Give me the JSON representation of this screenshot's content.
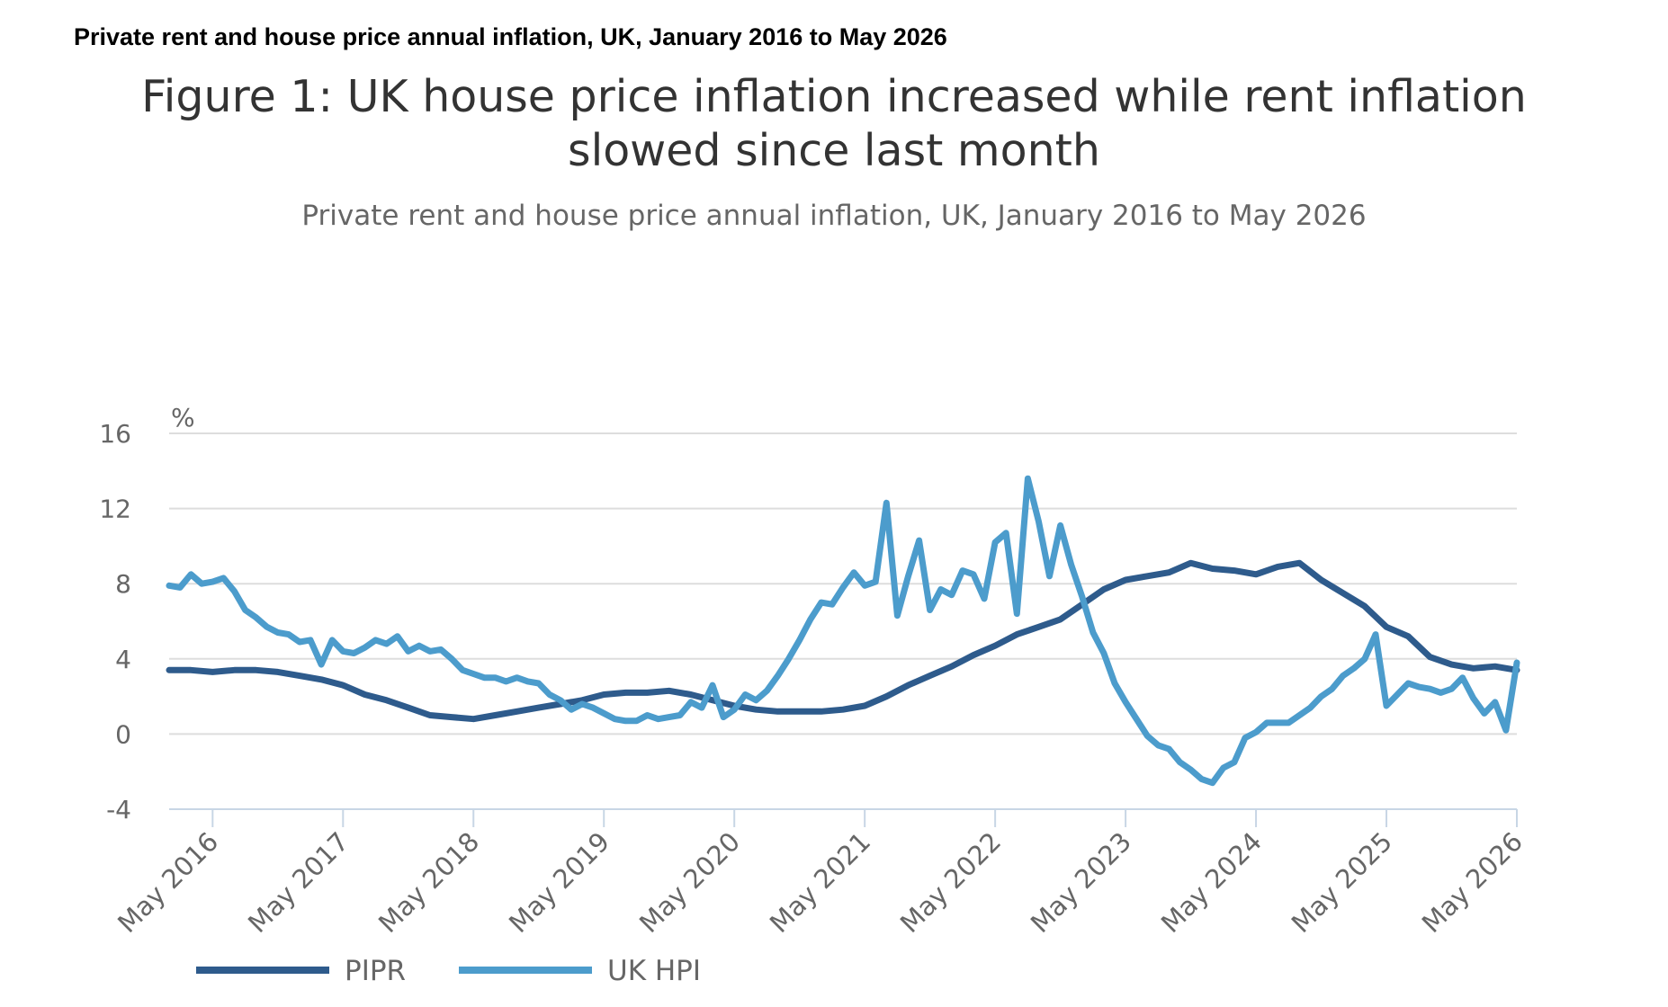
{
  "page_heading": "Private rent and house price annual inflation, UK, January 2016 to May 2026",
  "chart_data": {
    "type": "line",
    "title_lines": [
      "Figure 1: UK house price inflation increased while rent inflation",
      "slowed since last month"
    ],
    "subtitle": "Private rent and house price annual inflation, UK, January 2016 to May 2026",
    "ylabel": "%",
    "ylim": [
      -4,
      16
    ],
    "yticks": [
      "16",
      "12",
      "8",
      "4",
      "0",
      "-4"
    ],
    "xlim": [
      "2016-01",
      "2026-05"
    ],
    "xticks": [
      "May 2016",
      "May 2017",
      "May 2018",
      "May 2019",
      "May 2020",
      "May 2021",
      "May 2022",
      "May 2023",
      "May 2024",
      "May 2025",
      "May 2026"
    ],
    "grid": "horizontal",
    "legend_position": "bottom-left",
    "colors": {
      "PIPR": "#2e5b8c",
      "UK HPI": "#4c9ccc",
      "grid": "#dddddd",
      "axis": "#c8d6e5"
    },
    "series": [
      {
        "name": "PIPR",
        "x": [
          "2016-01",
          "2016-03",
          "2016-05",
          "2016-07",
          "2016-09",
          "2016-11",
          "2017-01",
          "2017-03",
          "2017-05",
          "2017-07",
          "2017-09",
          "2017-11",
          "2018-01",
          "2018-03",
          "2018-05",
          "2018-07",
          "2018-09",
          "2018-11",
          "2019-01",
          "2019-03",
          "2019-05",
          "2019-07",
          "2019-09",
          "2019-11",
          "2020-01",
          "2020-03",
          "2020-05",
          "2020-07",
          "2020-09",
          "2020-11",
          "2021-01",
          "2021-03",
          "2021-05",
          "2021-07",
          "2021-09",
          "2021-11",
          "2022-01",
          "2022-03",
          "2022-05",
          "2022-07",
          "2022-09",
          "2022-11",
          "2023-01",
          "2023-03",
          "2023-05",
          "2023-07",
          "2023-09",
          "2023-11",
          "2024-01",
          "2024-03",
          "2024-05",
          "2024-07",
          "2024-09",
          "2024-11",
          "2025-01",
          "2025-03",
          "2025-05",
          "2025-07",
          "2025-09",
          "2025-11",
          "2026-01",
          "2026-03",
          "2026-05"
        ],
        "values": [
          3.4,
          3.4,
          3.3,
          3.4,
          3.4,
          3.3,
          3.1,
          2.9,
          2.6,
          2.1,
          1.8,
          1.4,
          1.0,
          0.9,
          0.8,
          1.0,
          1.2,
          1.4,
          1.6,
          1.8,
          2.1,
          2.2,
          2.2,
          2.3,
          2.1,
          1.8,
          1.5,
          1.3,
          1.2,
          1.2,
          1.2,
          1.3,
          1.5,
          2.0,
          2.6,
          3.1,
          3.6,
          4.2,
          4.7,
          5.3,
          5.7,
          6.1,
          6.9,
          7.7,
          8.2,
          8.4,
          8.6,
          9.1,
          8.8,
          8.7,
          8.5,
          8.9,
          9.1,
          8.2,
          7.5,
          6.8,
          5.7,
          5.2,
          4.1,
          3.7,
          3.5,
          3.6,
          3.4
        ]
      },
      {
        "name": "UK HPI",
        "x": [
          "2016-01",
          "2016-02",
          "2016-03",
          "2016-04",
          "2016-05",
          "2016-06",
          "2016-07",
          "2016-08",
          "2016-09",
          "2016-10",
          "2016-11",
          "2016-12",
          "2017-01",
          "2017-02",
          "2017-03",
          "2017-04",
          "2017-05",
          "2017-06",
          "2017-07",
          "2017-08",
          "2017-09",
          "2017-10",
          "2017-11",
          "2017-12",
          "2018-01",
          "2018-02",
          "2018-03",
          "2018-04",
          "2018-05",
          "2018-06",
          "2018-07",
          "2018-08",
          "2018-09",
          "2018-10",
          "2018-11",
          "2018-12",
          "2019-01",
          "2019-02",
          "2019-03",
          "2019-04",
          "2019-05",
          "2019-06",
          "2019-07",
          "2019-08",
          "2019-09",
          "2019-10",
          "2019-11",
          "2019-12",
          "2020-01",
          "2020-02",
          "2020-03",
          "2020-04",
          "2020-05",
          "2020-06",
          "2020-07",
          "2020-08",
          "2020-09",
          "2020-10",
          "2020-11",
          "2020-12",
          "2021-01",
          "2021-02",
          "2021-03",
          "2021-04",
          "2021-05",
          "2021-06",
          "2021-07",
          "2021-08",
          "2021-09",
          "2021-10",
          "2021-11",
          "2021-12",
          "2022-01",
          "2022-02",
          "2022-03",
          "2022-04",
          "2022-05",
          "2022-06",
          "2022-07",
          "2022-08",
          "2022-09",
          "2022-10",
          "2022-11",
          "2022-12",
          "2023-01",
          "2023-02",
          "2023-03",
          "2023-04",
          "2023-05",
          "2023-06",
          "2023-07",
          "2023-08",
          "2023-09",
          "2023-10",
          "2023-11",
          "2023-12",
          "2024-01",
          "2024-02",
          "2024-03",
          "2024-04",
          "2024-05",
          "2024-06",
          "2024-07",
          "2024-08",
          "2024-09",
          "2024-10",
          "2024-11",
          "2024-12",
          "2025-01",
          "2025-02",
          "2025-03",
          "2025-04",
          "2025-05",
          "2025-06",
          "2025-07",
          "2025-08",
          "2025-09",
          "2025-10",
          "2025-11",
          "2025-12",
          "2026-01",
          "2026-02",
          "2026-03",
          "2026-04",
          "2026-05"
        ],
        "values": [
          7.9,
          7.8,
          8.5,
          8.0,
          8.1,
          8.3,
          7.6,
          6.6,
          6.2,
          5.7,
          5.4,
          5.3,
          4.9,
          5.0,
          3.7,
          5.0,
          4.4,
          4.3,
          4.6,
          5.0,
          4.8,
          5.2,
          4.4,
          4.7,
          4.4,
          4.5,
          4.0,
          3.4,
          3.2,
          3.0,
          3.0,
          2.8,
          3.0,
          2.8,
          2.7,
          2.1,
          1.8,
          1.3,
          1.6,
          1.4,
          1.1,
          0.8,
          0.7,
          0.7,
          1.0,
          0.8,
          0.9,
          1.0,
          1.7,
          1.4,
          2.6,
          0.9,
          1.3,
          2.1,
          1.8,
          2.3,
          3.1,
          4.0,
          5.0,
          6.1,
          7.0,
          6.9,
          7.8,
          8.6,
          7.9,
          8.1,
          12.3,
          6.3,
          8.4,
          10.3,
          6.6,
          7.7,
          7.4,
          8.7,
          8.5,
          7.2,
          10.2,
          10.7,
          6.4,
          13.6,
          11.3,
          8.4,
          11.1,
          9.0,
          7.3,
          5.4,
          4.3,
          2.7,
          1.7,
          0.8,
          -0.1,
          -0.6,
          -0.8,
          -1.5,
          -1.9,
          -2.4,
          -2.6,
          -1.8,
          -1.5,
          -0.2,
          0.1,
          0.6,
          0.6,
          0.6,
          1.0,
          1.4,
          2.0,
          2.4,
          3.1,
          3.5,
          4.0,
          5.3,
          1.5,
          2.1,
          2.7,
          2.5,
          2.4,
          2.2,
          2.4,
          3.0,
          1.9,
          1.1,
          1.7,
          0.2,
          3.8
        ]
      }
    ]
  }
}
